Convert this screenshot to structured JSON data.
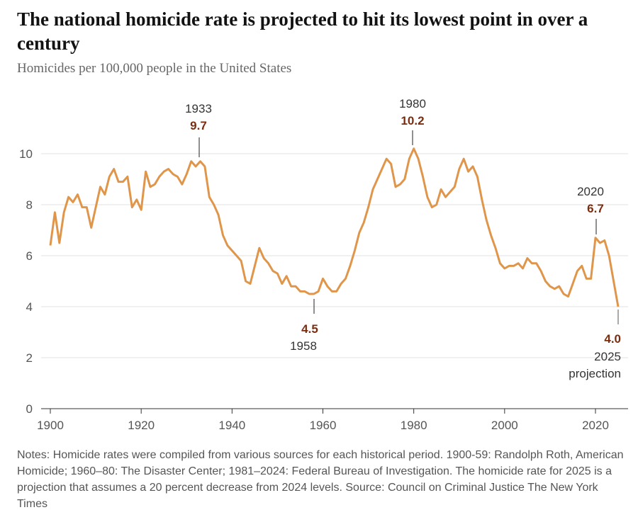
{
  "title": "The national homicide rate is projected to hit its lowest point in over a century",
  "subtitle": "Homicides per 100,000 people in the United States",
  "notes": "Notes: Homicide rates were compiled from various sources for each historical period. 1900-59: Randolph Roth, American Homicide; 1960–80: The Disaster Center; 1981–2024: Federal Bureau of Investigation. The homicide rate for 2025 is a projection that assumes a 20 percent decrease from 2024 levels.  Source: Council on Criminal Justice  The New York Times",
  "chart_data": {
    "type": "line",
    "title": "The national homicide rate is projected to hit its lowest point in over a century",
    "ylabel": "Homicides per 100,000 people in the United States",
    "xlim": [
      1900,
      2025
    ],
    "ylim": [
      0,
      10
    ],
    "xticks": [
      "1900",
      "1920",
      "1940",
      "1960",
      "1980",
      "2000",
      "2020"
    ],
    "yticks": [
      "0",
      "2",
      "4",
      "6",
      "8",
      "10"
    ],
    "grid": true,
    "line_color": "#e0964a",
    "x_start": 1900,
    "values": [
      6.4,
      7.7,
      6.5,
      7.7,
      8.3,
      8.1,
      8.4,
      7.9,
      7.9,
      7.1,
      7.9,
      8.7,
      8.4,
      9.1,
      9.4,
      8.9,
      8.9,
      9.1,
      7.9,
      8.2,
      7.8,
      9.3,
      8.7,
      8.8,
      9.1,
      9.3,
      9.4,
      9.2,
      9.1,
      8.8,
      9.2,
      9.7,
      9.5,
      9.7,
      9.5,
      8.3,
      8.0,
      7.6,
      6.8,
      6.4,
      6.2,
      6.0,
      5.8,
      5.0,
      4.9,
      5.6,
      6.3,
      5.9,
      5.7,
      5.4,
      5.3,
      4.9,
      5.2,
      4.8,
      4.8,
      4.6,
      4.6,
      4.5,
      4.5,
      4.6,
      5.1,
      4.8,
      4.6,
      4.6,
      4.9,
      5.1,
      5.6,
      6.2,
      6.9,
      7.3,
      7.9,
      8.6,
      9.0,
      9.4,
      9.8,
      9.6,
      8.7,
      8.8,
      9.0,
      9.8,
      10.2,
      9.8,
      9.1,
      8.3,
      7.9,
      8.0,
      8.6,
      8.3,
      8.5,
      8.7,
      9.4,
      9.8,
      9.3,
      9.5,
      9.1,
      8.2,
      7.4,
      6.8,
      6.3,
      5.7,
      5.5,
      5.6,
      5.6,
      5.7,
      5.5,
      5.9,
      5.7,
      5.7,
      5.4,
      5.0,
      4.8,
      4.7,
      4.8,
      4.5,
      4.4,
      4.9,
      5.4,
      5.6,
      5.1,
      5.1,
      6.7,
      6.5,
      6.6,
      6.0,
      5.0,
      4.0
    ],
    "annotations": [
      {
        "year": "1933",
        "value": "9.7"
      },
      {
        "year": "1958",
        "value": "4.5"
      },
      {
        "year": "1980",
        "value": "10.2"
      },
      {
        "year": "2020",
        "value": "6.7"
      },
      {
        "year": "2025",
        "value": "4.0",
        "note": "projection"
      }
    ]
  }
}
